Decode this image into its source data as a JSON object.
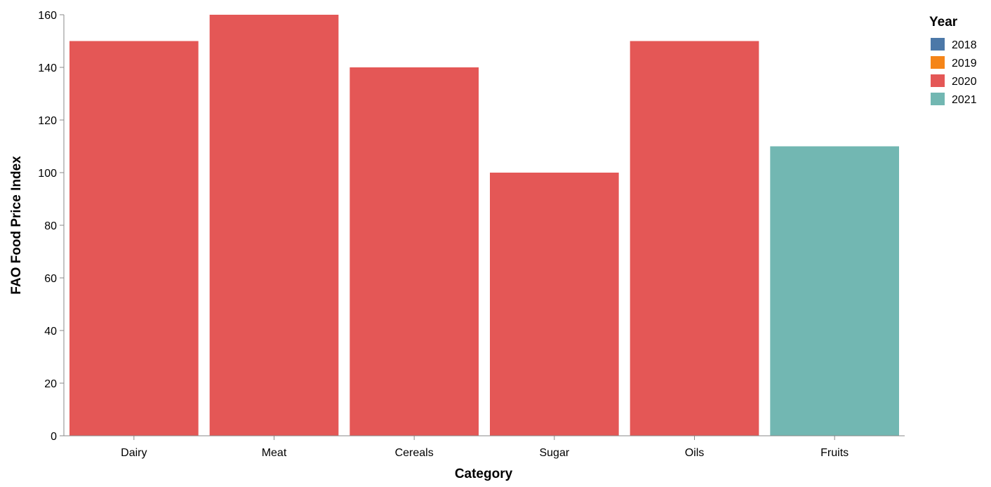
{
  "chart_data": {
    "type": "bar",
    "categories": [
      "Dairy",
      "Meat",
      "Cereals",
      "Sugar",
      "Oils",
      "Fruits"
    ],
    "series": [
      {
        "name": "2018",
        "color": "#4c78a8",
        "values": [
          null,
          null,
          null,
          null,
          null,
          null
        ]
      },
      {
        "name": "2019",
        "color": "#f58518",
        "values": [
          null,
          null,
          null,
          null,
          null,
          null
        ]
      },
      {
        "name": "2020",
        "color": "#e45756",
        "values": [
          150,
          160,
          140,
          100,
          150,
          null
        ]
      },
      {
        "name": "2021",
        "color": "#72b7b2",
        "values": [
          null,
          null,
          null,
          null,
          null,
          110
        ]
      }
    ],
    "xlabel": "Category",
    "ylabel": "FAO Food Price Index",
    "ylim": [
      0,
      160
    ],
    "yticks": [
      0,
      20,
      40,
      60,
      80,
      100,
      120,
      140,
      160
    ],
    "legend": {
      "title": "Year",
      "position": "top-right"
    },
    "grid": false
  }
}
